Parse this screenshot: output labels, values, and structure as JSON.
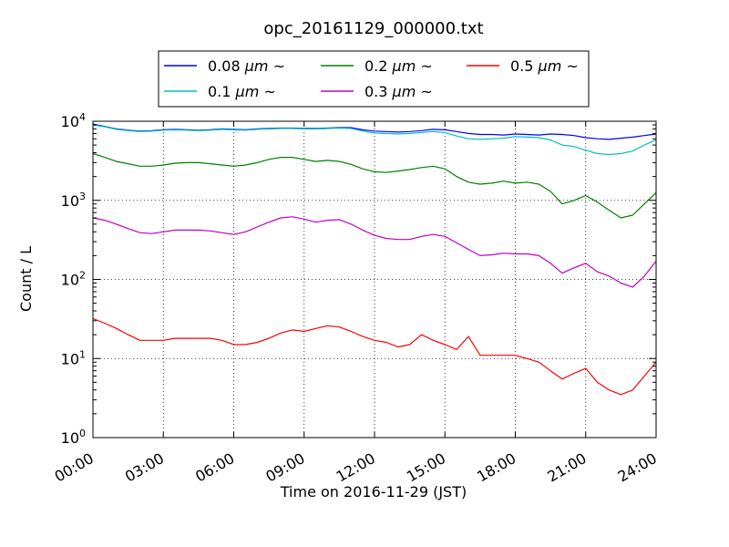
{
  "chart_data": {
    "type": "line",
    "title": "opc_20161129_000000.txt",
    "xlabel": "Time on 2016-11-29 (JST)",
    "ylabel": "Count / L",
    "x_unit": "hours",
    "xlim": [
      0,
      24
    ],
    "ylim": [
      1,
      10000
    ],
    "y_scale": "log",
    "grid": true,
    "legend_position": "top",
    "x_ticks": [
      "00:00",
      "03:00",
      "06:00",
      "09:00",
      "12:00",
      "15:00",
      "18:00",
      "21:00",
      "24:00"
    ],
    "y_ticks": [
      {
        "base": "10",
        "exp": "0"
      },
      {
        "base": "10",
        "exp": "1"
      },
      {
        "base": "10",
        "exp": "2"
      },
      {
        "base": "10",
        "exp": "3"
      },
      {
        "base": "10",
        "exp": "4"
      }
    ],
    "series": [
      {
        "name": "0.08 µm ~",
        "label_parts": [
          "0.08 ",
          "µ",
          "m",
          " ~"
        ],
        "color": "#0000ff",
        "points": [
          [
            0,
            9200
          ],
          [
            0.5,
            8600
          ],
          [
            1,
            8000
          ],
          [
            1.5,
            7700
          ],
          [
            2,
            7500
          ],
          [
            2.5,
            7600
          ],
          [
            3,
            7800
          ],
          [
            3.5,
            7900
          ],
          [
            4,
            7800
          ],
          [
            4.5,
            7700
          ],
          [
            5,
            7800
          ],
          [
            5.5,
            8000
          ],
          [
            6,
            7900
          ],
          [
            6.5,
            7800
          ],
          [
            7,
            8000
          ],
          [
            7.5,
            8100
          ],
          [
            8,
            8200
          ],
          [
            8.5,
            8200
          ],
          [
            9,
            8100
          ],
          [
            9.5,
            8100
          ],
          [
            10,
            8200
          ],
          [
            10.5,
            8300
          ],
          [
            11,
            8300
          ],
          [
            11.5,
            7800
          ],
          [
            12,
            7500
          ],
          [
            12.5,
            7400
          ],
          [
            13,
            7300
          ],
          [
            13.5,
            7400
          ],
          [
            14,
            7600
          ],
          [
            14.5,
            7900
          ],
          [
            15,
            7800
          ],
          [
            15.5,
            7400
          ],
          [
            16,
            7000
          ],
          [
            16.5,
            6800
          ],
          [
            17,
            6800
          ],
          [
            17.5,
            6700
          ],
          [
            18,
            6900
          ],
          [
            18.5,
            6800
          ],
          [
            19,
            6700
          ],
          [
            19.5,
            6900
          ],
          [
            20,
            6800
          ],
          [
            20.5,
            6600
          ],
          [
            21,
            6200
          ],
          [
            21.5,
            6000
          ],
          [
            22,
            5900
          ],
          [
            22.5,
            6100
          ],
          [
            23,
            6300
          ],
          [
            23.5,
            6600
          ],
          [
            24,
            6900
          ]
        ]
      },
      {
        "name": "0.1 µm ~",
        "label_parts": [
          "0.1 ",
          "µ",
          "m",
          " ~"
        ],
        "color": "#00bfbf",
        "points": [
          [
            0,
            9000
          ],
          [
            0.5,
            8500
          ],
          [
            1,
            7900
          ],
          [
            1.5,
            7600
          ],
          [
            2,
            7400
          ],
          [
            2.5,
            7500
          ],
          [
            3,
            7700
          ],
          [
            3.5,
            7800
          ],
          [
            4,
            7700
          ],
          [
            4.5,
            7600
          ],
          [
            5,
            7700
          ],
          [
            5.5,
            7900
          ],
          [
            6,
            7800
          ],
          [
            6.5,
            7700
          ],
          [
            7,
            7900
          ],
          [
            7.5,
            8000
          ],
          [
            8,
            8100
          ],
          [
            8.5,
            8100
          ],
          [
            9,
            8000
          ],
          [
            9.5,
            8000
          ],
          [
            10,
            8100
          ],
          [
            10.5,
            8200
          ],
          [
            11,
            8100
          ],
          [
            11.5,
            7500
          ],
          [
            12,
            7100
          ],
          [
            12.5,
            7000
          ],
          [
            13,
            6900
          ],
          [
            13.5,
            7000
          ],
          [
            14,
            7200
          ],
          [
            14.5,
            7400
          ],
          [
            15,
            7200
          ],
          [
            15.5,
            6500
          ],
          [
            16,
            6000
          ],
          [
            16.5,
            5900
          ],
          [
            17,
            6000
          ],
          [
            17.5,
            6100
          ],
          [
            18,
            6400
          ],
          [
            18.5,
            6300
          ],
          [
            19,
            6200
          ],
          [
            19.5,
            5800
          ],
          [
            20,
            5000
          ],
          [
            20.5,
            4800
          ],
          [
            21,
            4300
          ],
          [
            21.5,
            3900
          ],
          [
            22,
            3800
          ],
          [
            22.5,
            3900
          ],
          [
            23,
            4200
          ],
          [
            23.5,
            5000
          ],
          [
            24,
            5800
          ]
        ]
      },
      {
        "name": "0.2 µm ~",
        "label_parts": [
          "0.2 ",
          "µ",
          "m",
          " ~"
        ],
        "color": "#008000",
        "points": [
          [
            0,
            3900
          ],
          [
            0.5,
            3500
          ],
          [
            1,
            3100
          ],
          [
            1.5,
            2900
          ],
          [
            2,
            2700
          ],
          [
            2.5,
            2700
          ],
          [
            3,
            2800
          ],
          [
            3.5,
            2950
          ],
          [
            4,
            3000
          ],
          [
            4.5,
            3000
          ],
          [
            5,
            2900
          ],
          [
            5.5,
            2800
          ],
          [
            6,
            2700
          ],
          [
            6.5,
            2800
          ],
          [
            7,
            3000
          ],
          [
            7.5,
            3300
          ],
          [
            8,
            3500
          ],
          [
            8.5,
            3500
          ],
          [
            9,
            3300
          ],
          [
            9.5,
            3100
          ],
          [
            10,
            3200
          ],
          [
            10.5,
            3100
          ],
          [
            11,
            2850
          ],
          [
            11.5,
            2500
          ],
          [
            12,
            2300
          ],
          [
            12.5,
            2250
          ],
          [
            13,
            2350
          ],
          [
            13.5,
            2450
          ],
          [
            14,
            2600
          ],
          [
            14.5,
            2700
          ],
          [
            15,
            2500
          ],
          [
            15.5,
            2000
          ],
          [
            16,
            1700
          ],
          [
            16.5,
            1600
          ],
          [
            17,
            1650
          ],
          [
            17.5,
            1750
          ],
          [
            18,
            1650
          ],
          [
            18.5,
            1700
          ],
          [
            19,
            1600
          ],
          [
            19.5,
            1300
          ],
          [
            20,
            900
          ],
          [
            20.5,
            1000
          ],
          [
            21,
            1150
          ],
          [
            21.5,
            950
          ],
          [
            22,
            750
          ],
          [
            22.5,
            600
          ],
          [
            23,
            650
          ],
          [
            23.5,
            900
          ],
          [
            24,
            1250
          ]
        ]
      },
      {
        "name": "0.3 µm ~",
        "label_parts": [
          "0.3 ",
          "µ",
          "m",
          " ~"
        ],
        "color": "#bf00bf",
        "points": [
          [
            0,
            600
          ],
          [
            0.5,
            560
          ],
          [
            1,
            500
          ],
          [
            1.5,
            440
          ],
          [
            2,
            390
          ],
          [
            2.5,
            380
          ],
          [
            3,
            400
          ],
          [
            3.5,
            420
          ],
          [
            4,
            420
          ],
          [
            4.5,
            420
          ],
          [
            5,
            410
          ],
          [
            5.5,
            390
          ],
          [
            6,
            370
          ],
          [
            6.5,
            400
          ],
          [
            7,
            460
          ],
          [
            7.5,
            530
          ],
          [
            8,
            600
          ],
          [
            8.5,
            620
          ],
          [
            9,
            580
          ],
          [
            9.5,
            530
          ],
          [
            10,
            560
          ],
          [
            10.5,
            570
          ],
          [
            11,
            500
          ],
          [
            11.5,
            420
          ],
          [
            12,
            360
          ],
          [
            12.5,
            330
          ],
          [
            13,
            320
          ],
          [
            13.5,
            320
          ],
          [
            14,
            350
          ],
          [
            14.5,
            370
          ],
          [
            15,
            350
          ],
          [
            15.5,
            290
          ],
          [
            16,
            240
          ],
          [
            16.5,
            200
          ],
          [
            17,
            205
          ],
          [
            17.5,
            215
          ],
          [
            18,
            210
          ],
          [
            18.5,
            210
          ],
          [
            19,
            200
          ],
          [
            19.5,
            160
          ],
          [
            20,
            120
          ],
          [
            20.5,
            140
          ],
          [
            21,
            160
          ],
          [
            21.5,
            125
          ],
          [
            22,
            110
          ],
          [
            22.5,
            90
          ],
          [
            23,
            80
          ],
          [
            23.5,
            110
          ],
          [
            24,
            170
          ]
        ]
      },
      {
        "name": "0.5 µm ~",
        "label_parts": [
          "0.5 ",
          "µ",
          "m",
          " ~"
        ],
        "color": "#ff0000",
        "points": [
          [
            0,
            32
          ],
          [
            0.5,
            28
          ],
          [
            1,
            24
          ],
          [
            1.5,
            20
          ],
          [
            2,
            17
          ],
          [
            2.5,
            17
          ],
          [
            3,
            17
          ],
          [
            3.5,
            18
          ],
          [
            4,
            18
          ],
          [
            4.5,
            18
          ],
          [
            5,
            18
          ],
          [
            5.5,
            17
          ],
          [
            6,
            15
          ],
          [
            6.5,
            15
          ],
          [
            7,
            16
          ],
          [
            7.5,
            18
          ],
          [
            8,
            21
          ],
          [
            8.5,
            23
          ],
          [
            9,
            22
          ],
          [
            9.5,
            24
          ],
          [
            10,
            26
          ],
          [
            10.5,
            25
          ],
          [
            11,
            22
          ],
          [
            11.5,
            19
          ],
          [
            12,
            17
          ],
          [
            12.5,
            16
          ],
          [
            13,
            14
          ],
          [
            13.5,
            15
          ],
          [
            14,
            20
          ],
          [
            14.5,
            17
          ],
          [
            15,
            15
          ],
          [
            15.5,
            13
          ],
          [
            16,
            19
          ],
          [
            16.5,
            11
          ],
          [
            17,
            11
          ],
          [
            17.5,
            11
          ],
          [
            18,
            11
          ],
          [
            18.5,
            10
          ],
          [
            19,
            9
          ],
          [
            19.5,
            7
          ],
          [
            20,
            5.5
          ],
          [
            20.5,
            6.5
          ],
          [
            21,
            7.5
          ],
          [
            21.5,
            5
          ],
          [
            22,
            4
          ],
          [
            22.5,
            3.5
          ],
          [
            23,
            4
          ],
          [
            23.5,
            6
          ],
          [
            24,
            9
          ]
        ]
      }
    ]
  }
}
